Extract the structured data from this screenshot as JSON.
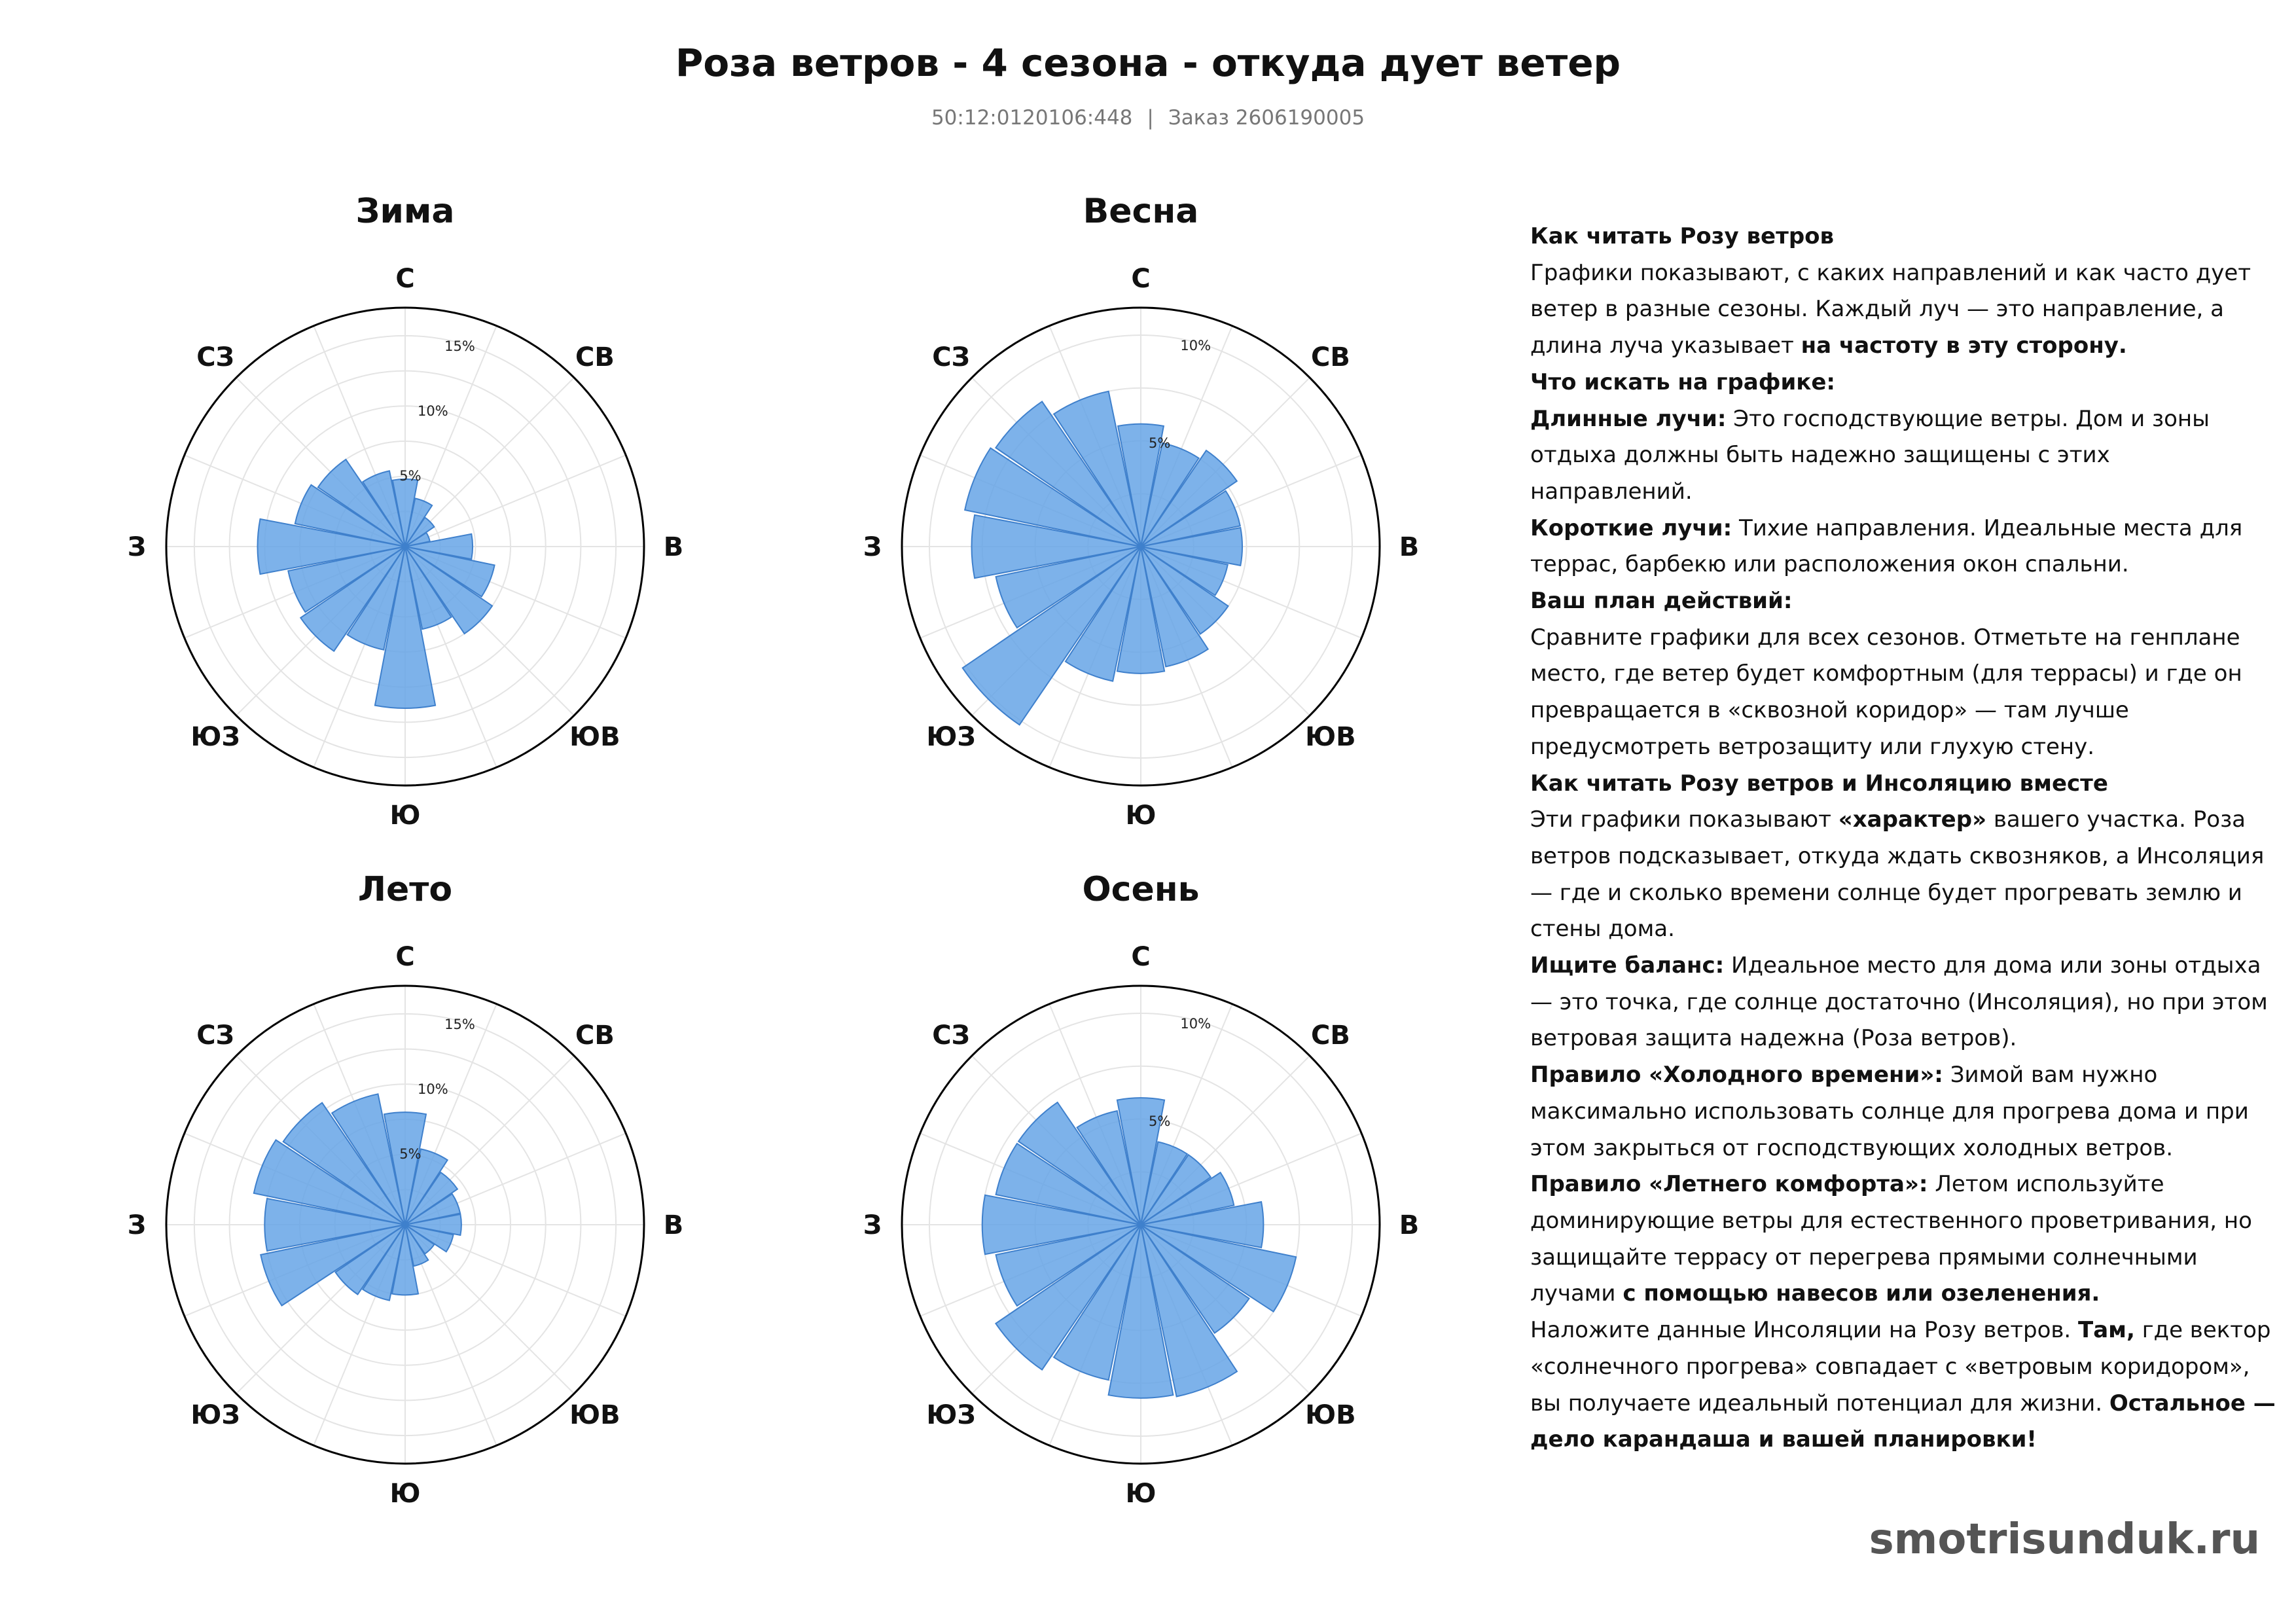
{
  "header": {
    "title": "Роза ветров - 4 сезона - откуда дует ветер",
    "cadastral": "50:12:0120106:448",
    "separator": "|",
    "order": "Заказ 2606190005"
  },
  "colors": {
    "petal_fill": "#66a5e6",
    "petal_stroke": "#3f80cc",
    "grid": "#e4e4e4",
    "outer_ring": "#000000",
    "footer": "#555555"
  },
  "chart_data": [
    {
      "type": "polar-bar",
      "title": "Зима",
      "directions": [
        "С",
        "СВ",
        "В",
        "ЮВ",
        "Ю",
        "ЮЗ",
        "З",
        "СЗ"
      ],
      "sectors": 16,
      "unit": "%",
      "rlim": [
        0,
        17
      ],
      "ticks": [
        5,
        10,
        15
      ],
      "tick_labels": [
        "5%",
        "10%",
        "15%"
      ],
      "values": [
        4.8,
        3.5,
        2.5,
        1.8,
        4.8,
        6.5,
        7.5,
        6.0,
        11.5,
        7.5,
        9.0,
        8.5,
        10.5,
        8.0,
        7.5,
        5.5
      ]
    },
    {
      "type": "polar-bar",
      "title": "Весна",
      "directions": [
        "С",
        "СВ",
        "В",
        "ЮВ",
        "Ю",
        "ЮЗ",
        "З",
        "СЗ"
      ],
      "sectors": 16,
      "unit": "%",
      "rlim": [
        0,
        11.3
      ],
      "ticks": [
        5,
        10
      ],
      "tick_labels": [
        "5%",
        "10%"
      ],
      "values": [
        5.8,
        5.0,
        5.5,
        4.8,
        4.8,
        4.2,
        5.0,
        5.8,
        6.0,
        6.5,
        10.2,
        7.0,
        8.0,
        8.5,
        8.3,
        7.5
      ]
    },
    {
      "type": "polar-bar",
      "title": "Лето",
      "directions": [
        "С",
        "СВ",
        "В",
        "ЮВ",
        "Ю",
        "ЮЗ",
        "З",
        "СЗ"
      ],
      "sectors": 16,
      "unit": "%",
      "rlim": [
        0,
        17
      ],
      "ticks": [
        5,
        10,
        15
      ],
      "tick_labels": [
        "5%",
        "10%",
        "15%"
      ],
      "values": [
        8.0,
        5.5,
        4.5,
        4.0,
        4.0,
        3.5,
        2.5,
        3.0,
        5.0,
        5.5,
        6.0,
        10.5,
        10.0,
        11.0,
        10.5,
        9.5
      ]
    },
    {
      "type": "polar-bar",
      "title": "Осень",
      "directions": [
        "С",
        "СВ",
        "В",
        "ЮВ",
        "Ю",
        "ЮЗ",
        "З",
        "СЗ"
      ],
      "sectors": 16,
      "unit": "%",
      "rlim": [
        0,
        11.3
      ],
      "ticks": [
        5,
        10
      ],
      "tick_labels": [
        "5%",
        "10%"
      ],
      "values": [
        6.0,
        4.0,
        4.0,
        4.5,
        5.8,
        7.5,
        6.2,
        8.3,
        8.2,
        7.5,
        8.3,
        7.0,
        7.5,
        7.0,
        7.0,
        5.5
      ]
    }
  ],
  "legend": {
    "how_to_read_heading": "Как читать Розу ветров",
    "how_to_read_text": "Графики показывают, с каких направлений и как часто дует ветер в разные сезоны. Каждый луч — это направление, а длина луча указывает ",
    "how_to_read_bold": "на частоту в эту сторону.",
    "what_to_look_heading": "Что искать на графике:",
    "long_rays_label": "Длинные лучи:",
    "long_rays_text": " Это господствующие ветры. Дом и зоны отдыха должны быть надежно защищены с этих направлений.",
    "short_rays_label": "Короткие лучи:",
    "short_rays_text": " Тихие направления. Идеальные места для террас, барбекю или расположения окон спальни.",
    "action_plan_heading": "Ваш план действий:",
    "action_plan_text": "Сравните графики для всех сезонов. Отметьте на генплане место, где ветер будет комфортным (для террасы) и где он превращается в «сквозной коридор» — там лучше предусмотреть ветрозащиту или глухую стену.",
    "together_heading": "Как читать Розу ветров и Инсоляцию вместе",
    "together_text_1": "Эти графики показывают ",
    "together_bold": "«характер»",
    "together_text_2": " вашего участка. Роза ветров подсказывает, откуда ждать сквозняков, а Инсоляция — где и сколько времени солнце будет прогревать землю и стены дома.",
    "balance_label": "Ищите баланс:",
    "balance_text": " Идеальное место для дома или зоны отдыха — это точка, где солнце достаточно (Инсоляция), но при этом ветровая защита надежна (Роза ветров).",
    "cold_rule_label": "Правило «Холодного времени»:",
    "cold_rule_text": " Зимой вам нужно максимально использовать солнце для прогрева дома и при этом закрыться от господствующих холодных ветров.",
    "summer_rule_label": "Правило «Летнего комфорта»:",
    "summer_rule_text": " Летом используйте доминирующие ветры для естественного проветривания, но защищайте террасу от перегрева прямыми солнечными лучами ",
    "summer_rule_bold": "с помощью навесов или озеленения.",
    "overlay_text": "Наложите данные Инсоляции на Розу ветров. ",
    "overlay_bold_1": "Там,",
    "overlay_text_2": " где вектор «солнечного прогрева» совпадает с «ветровым коридором», вы получаете идеальный потенциал для жизни. ",
    "overlay_bold_2": "Остальное — дело карандаша и вашей планировки!"
  },
  "footer": {
    "site": "smotrisunduk.ru"
  }
}
